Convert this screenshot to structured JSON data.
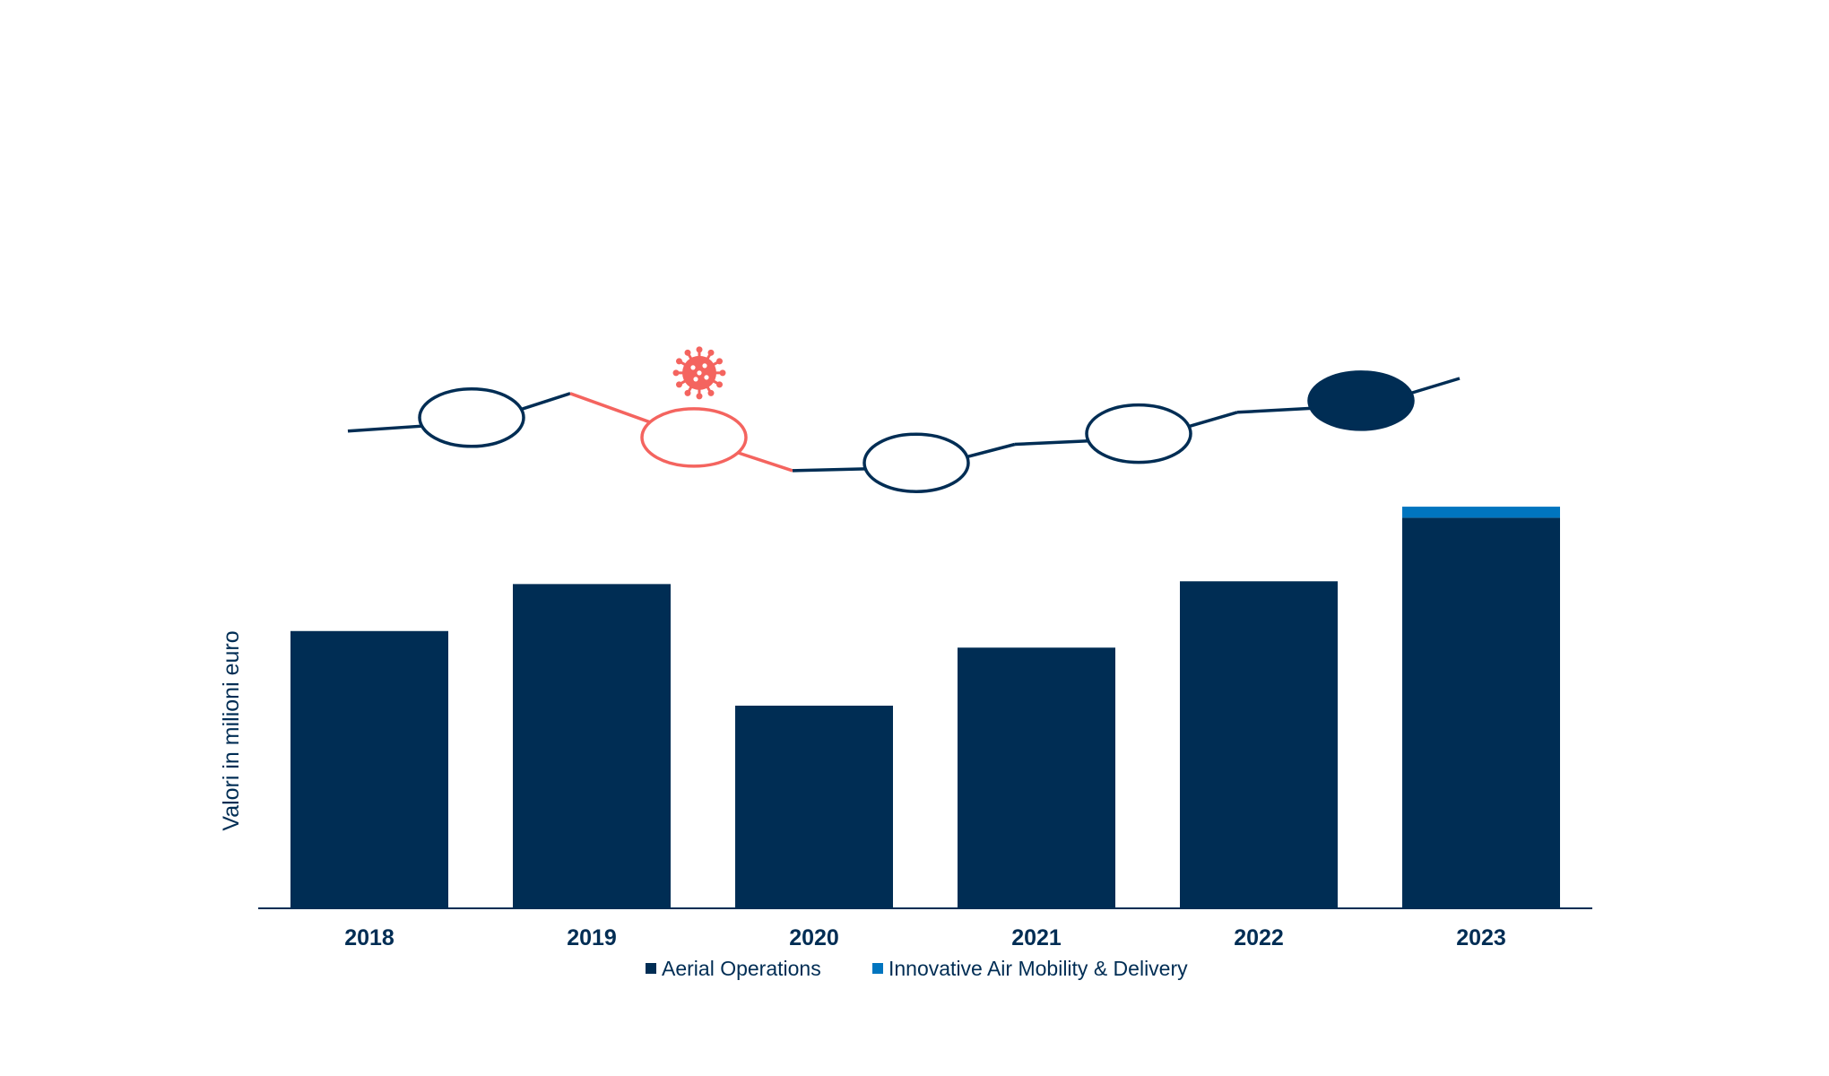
{
  "chart_data": {
    "type": "bar",
    "stacked": true,
    "categories": [
      "2018",
      "2019",
      "2020",
      "2021",
      "2022",
      "2023"
    ],
    "series": [
      {
        "name": "Aerial Operations",
        "values": [
          100,
          117,
          73,
          94,
          118,
          141
        ],
        "color": "#002d54"
      },
      {
        "name": "Innovative Air Mobility & Delivery",
        "values": [
          0,
          0,
          0,
          0,
          0,
          4
        ],
        "color": "#0075bf"
      }
    ],
    "ylabel": "Valori in milioni euro",
    "xlabel": "",
    "ylim": [
      0,
      170
    ],
    "grid": false,
    "legend_position": "bottom",
    "trend_line": {
      "values": [
        52,
        72,
        31,
        45,
        62,
        80
      ],
      "markers": [
        "outline",
        "outline-covid",
        "outline",
        "outline",
        "filled"
      ],
      "colors": {
        "normal": "#002d54",
        "covid": "#f4645f"
      },
      "covid_icon": "virus-icon"
    }
  }
}
